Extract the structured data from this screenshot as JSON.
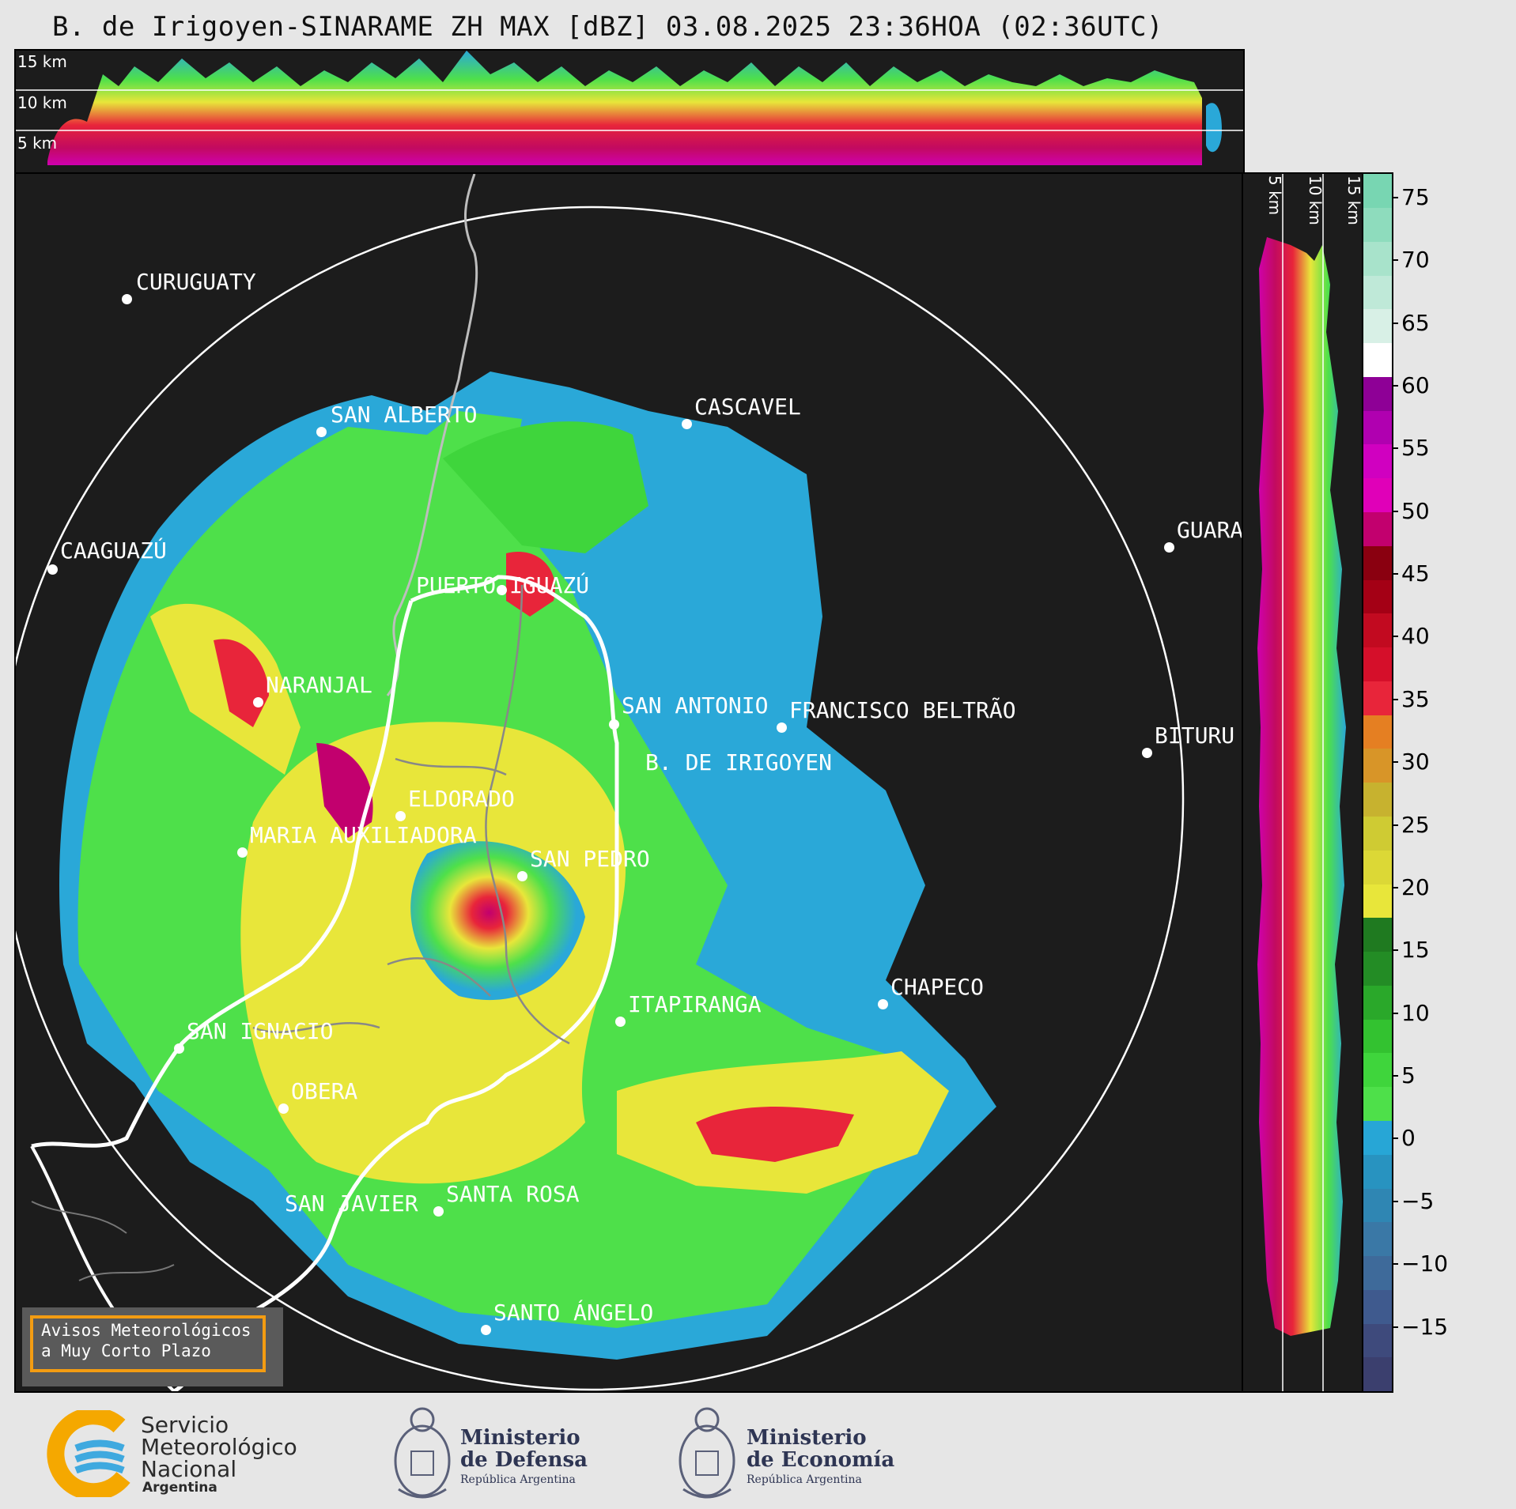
{
  "title": "B. de Irigoyen-SINARAME ZH MAX [dBZ] 03.08.2025 23:36HOA (02:36UTC)",
  "top_panel": {
    "height_labels": [
      "15 km",
      "10 km",
      "5 km"
    ]
  },
  "right_panel": {
    "height_labels": [
      "5 km",
      "10 km",
      "15 km"
    ]
  },
  "cities": [
    {
      "name": "CURUGUATY"
    },
    {
      "name": "SAN ALBERTO"
    },
    {
      "name": "CASCAVEL"
    },
    {
      "name": "CAAGUAZÚ"
    },
    {
      "name": "GUARA"
    },
    {
      "name": "PUERTO IGUAZÚ"
    },
    {
      "name": "NARANJAL"
    },
    {
      "name": "SAN ANTONIO"
    },
    {
      "name": "FRANCISCO BELTRÃO"
    },
    {
      "name": "BITURU"
    },
    {
      "name": "B. DE IRIGOYEN"
    },
    {
      "name": "ELDORADO"
    },
    {
      "name": "MARIA AUXILIADORA"
    },
    {
      "name": "SAN PEDRO"
    },
    {
      "name": "CHAPECO"
    },
    {
      "name": "ITAPIRANGA"
    },
    {
      "name": "SAN IGNACIO"
    },
    {
      "name": "OBERA"
    },
    {
      "name": "SAN JAVIER"
    },
    {
      "name": "SANTA ROSA"
    },
    {
      "name": "SANTO ÁNGELO"
    }
  ],
  "colorbar": {
    "unit": "dBZ",
    "range": [
      -20,
      77
    ],
    "tick_labels": [
      "75",
      "70",
      "65",
      "60",
      "55",
      "50",
      "45",
      "40",
      "35",
      "30",
      "25",
      "20",
      "15",
      "10",
      "5",
      "0",
      "−5",
      "−10",
      "−15"
    ],
    "tick_values": [
      75,
      70,
      65,
      60,
      55,
      50,
      45,
      40,
      35,
      30,
      25,
      20,
      15,
      10,
      5,
      0,
      -5,
      -10,
      -15
    ],
    "colors": [
      "#3b3f6e",
      "#3e4a7c",
      "#3f5a8e",
      "#3e6a9a",
      "#3a78a6",
      "#2f86b3",
      "#2893c0",
      "#27a6d6",
      "#4ee04a",
      "#3fd53c",
      "#33c230",
      "#2aa82a",
      "#238c25",
      "#1f7a20",
      "#e8e63a",
      "#dcd836",
      "#cfcb33",
      "#c7b22f",
      "#d89528",
      "#e57f22",
      "#e8253a",
      "#d50f2a",
      "#c20a20",
      "#a40015",
      "#8a0010",
      "#c2006e",
      "#e000b8",
      "#d000c0",
      "#b000b0",
      "#8e0096",
      "#ffffff",
      "#d8f0e6",
      "#bfe9d8",
      "#a8e3cb",
      "#8edcbd",
      "#78d6b2"
    ]
  },
  "warning_box": {
    "line1": "Avisos Meteorológicos",
    "line2": "a Muy Corto Plazo"
  },
  "logos": {
    "smn_line1": "Servicio",
    "smn_line2": "Meteorológico",
    "smn_line3": "Nacional",
    "smn_line4": "Argentina",
    "defensa_line1": "Ministerio",
    "defensa_line2": "de Defensa",
    "defensa_line3": "República Argentina",
    "economia_line1": "Ministerio",
    "economia_line2": "de Economía",
    "economia_line3": "República Argentina"
  }
}
